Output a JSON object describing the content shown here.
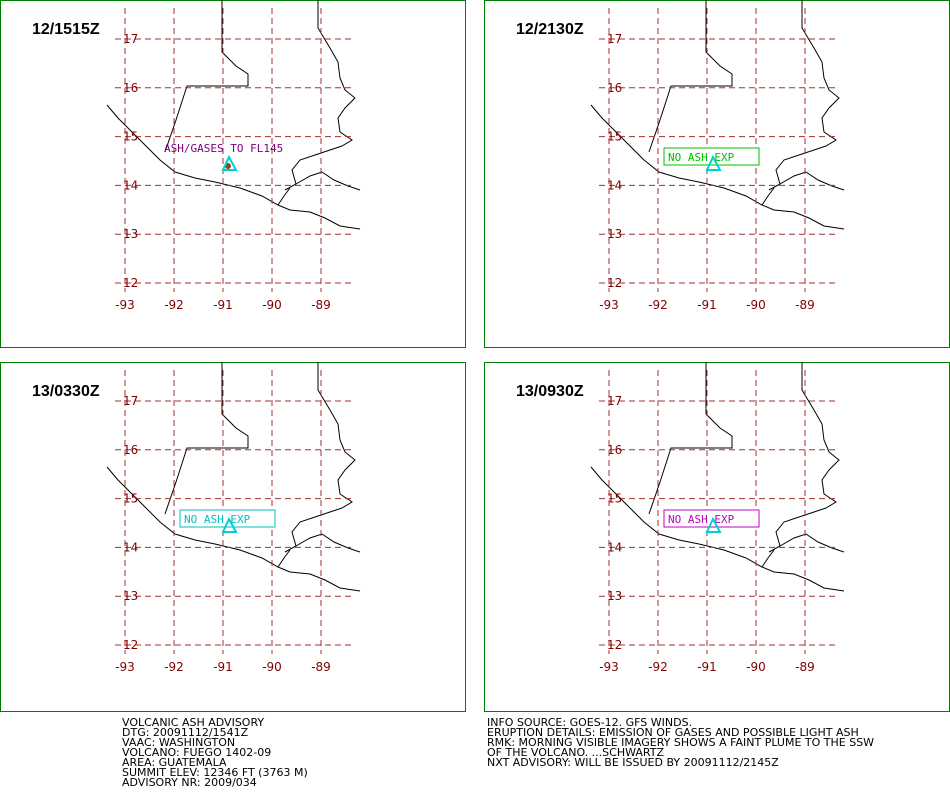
{
  "lat_ticks": [
    17,
    16,
    15,
    14,
    13,
    12
  ],
  "lon_ticks": [
    -93,
    -92,
    -91,
    -90,
    -89
  ],
  "panels": [
    {
      "label": "12/1515Z",
      "annotation": "ASH/GASES TO FL145",
      "boxed": false,
      "color": "#800080"
    },
    {
      "label": "12/2130Z",
      "annotation": "NO ASH EXP",
      "boxed": true,
      "color": "#00c000"
    },
    {
      "label": "13/0330Z",
      "annotation": "NO ASH EXP",
      "boxed": true,
      "color": "#00c0c0"
    },
    {
      "label": "13/0930Z",
      "annotation": "NO ASH EXP",
      "boxed": true,
      "color": "#c000c0"
    }
  ],
  "advisory_left": [
    "VOLCANIC ASH ADVISORY",
    "DTG: 20091112/1541Z",
    "VAAC: WASHINGTON",
    "VOLCANO: FUEGO 1402-09",
    "AREA: GUATEMALA",
    "SUMMIT ELEV: 12346 FT (3763 M)",
    "ADVISORY NR: 2009/034"
  ],
  "advisory_right": [
    "INFO SOURCE: GOES-12. GFS WINDS.",
    "ERUPTION DETAILS: EMISSION OF GASES AND POSSIBLE LIGHT ASH",
    "RMK: MORNING VISIBLE IMAGERY SHOWS A FAINT PLUME TO THE SSW",
    "OF THE VOLCANO. ...SCHWARTZ",
    "NXT ADVISORY: WILL BE ISSUED BY 20091112/2145Z"
  ]
}
